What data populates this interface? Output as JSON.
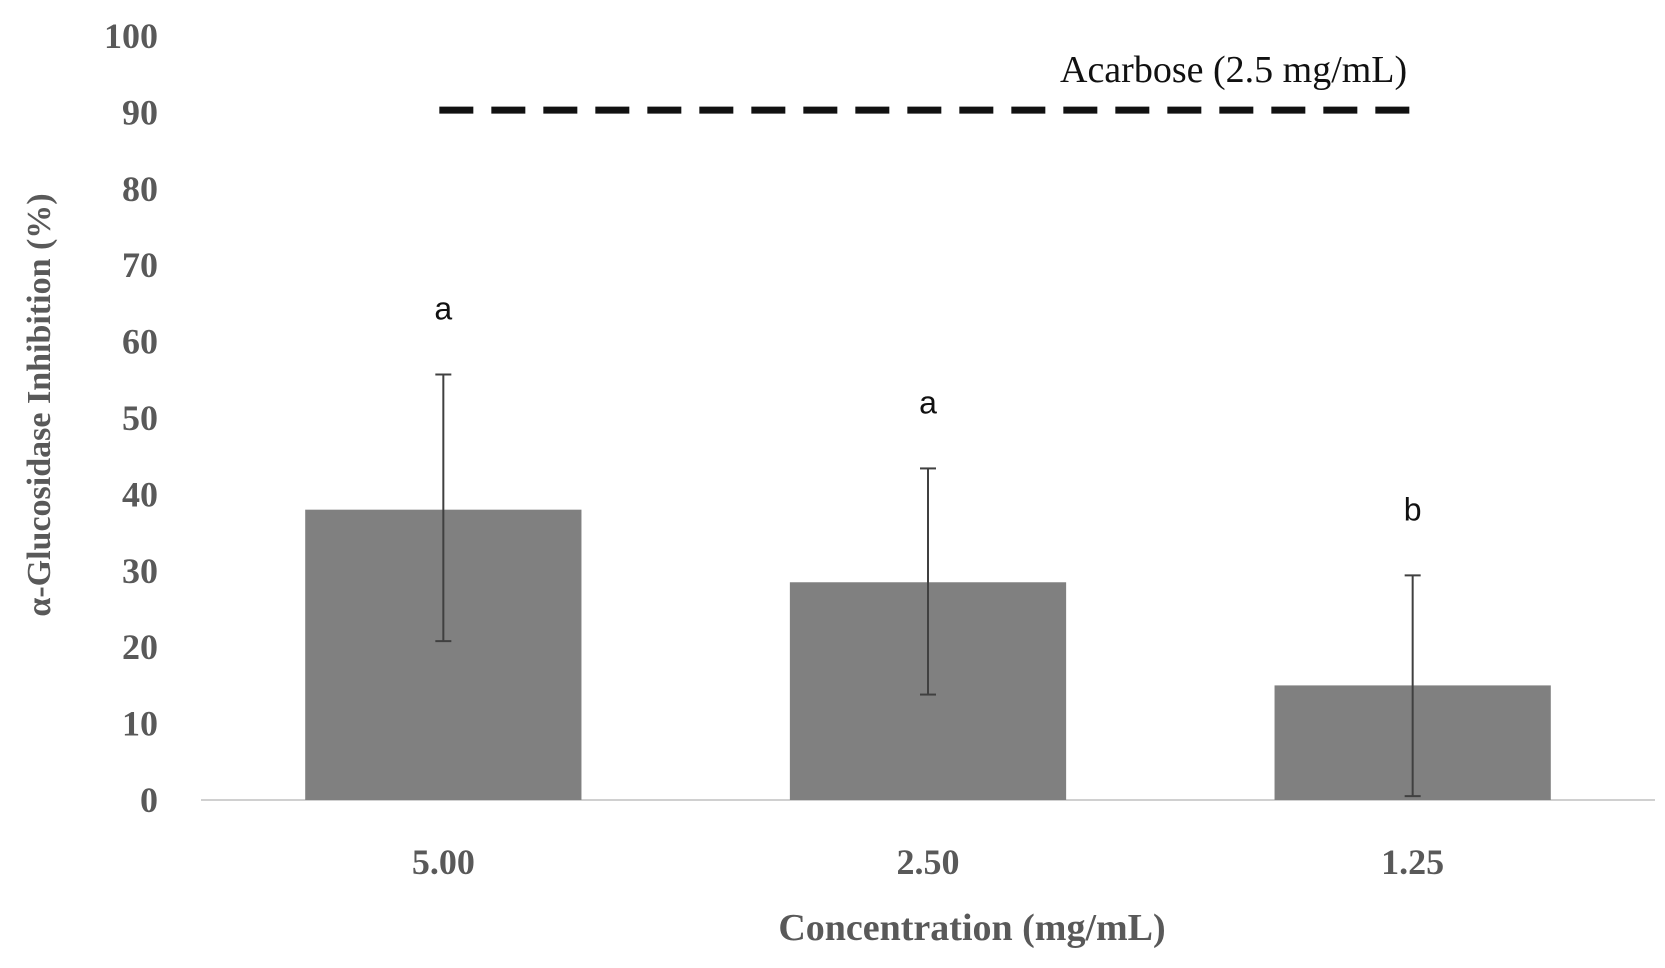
{
  "chart_data": {
    "type": "bar",
    "title": "",
    "xlabel": "Concentration (mg/mL)",
    "ylabel": "α-Glucosidase Inhibition (%)",
    "ylim": [
      0,
      100
    ],
    "yticks": [
      "0",
      "10",
      "20",
      "30",
      "40",
      "50",
      "60",
      "70",
      "80",
      "90",
      "100"
    ],
    "grid": false,
    "categories": [
      "5.00",
      "2.50",
      "1.25"
    ],
    "values": [
      38,
      28.5,
      15
    ],
    "error_upper": [
      55.7,
      43.4,
      29.4
    ],
    "error_lower": [
      20.8,
      13.8,
      0.5
    ],
    "significance_labels": [
      "a",
      "a",
      "b"
    ],
    "reference_line": {
      "label": "Acarbose (2.5 mg/mL)",
      "value": 90.3,
      "style": "dashed"
    },
    "colors": {
      "bar": "#808080",
      "error_bar": "#404040",
      "axis": "#d0d0d0",
      "reference": "#111111"
    }
  }
}
